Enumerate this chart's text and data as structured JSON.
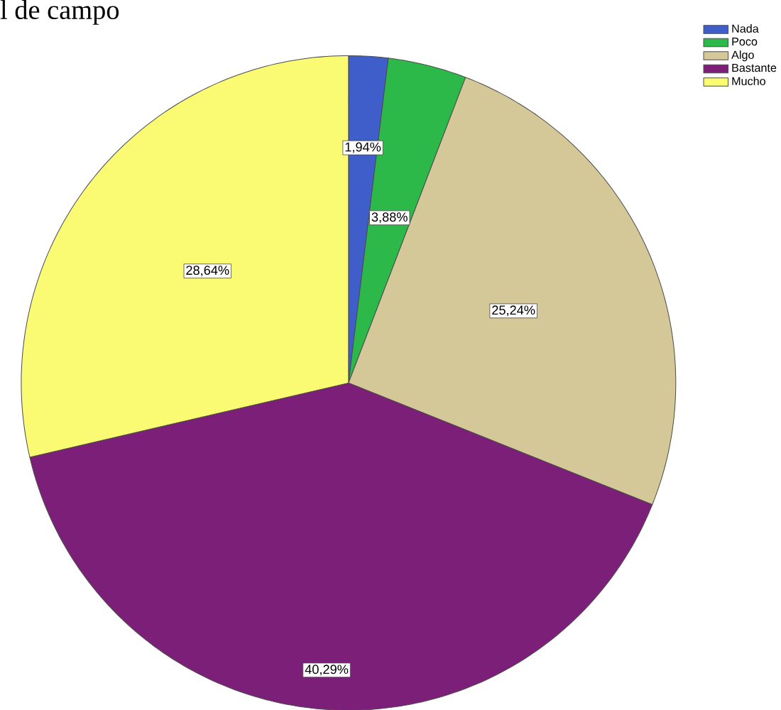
{
  "chart_data": {
    "type": "pie",
    "title": "l de campo",
    "categories": [
      "Nada",
      "Poco",
      "Algo",
      "Bastante",
      "Mucho"
    ],
    "values": [
      1.94,
      3.88,
      25.24,
      40.29,
      28.64
    ],
    "colors": [
      "#3f5ec9",
      "#2db84a",
      "#d4c898",
      "#7b1f78",
      "#fbfb73"
    ],
    "value_labels": [
      "1,94%",
      "3,88%",
      "25,24%",
      "40,29%",
      "28,64%"
    ],
    "legend": "top right"
  }
}
